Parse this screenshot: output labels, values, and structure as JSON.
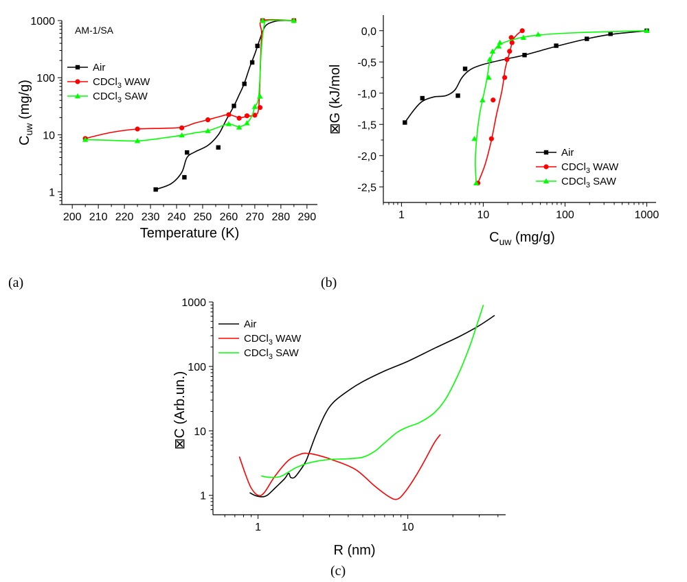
{
  "panels": [
    {
      "tag": "(a)",
      "annotation": "AM-1/SA",
      "xlabel": "Temperature (K)",
      "ylabel_main": "C",
      "ylabel_sub": "uw",
      "ylabel_tail": " (mg/g)"
    },
    {
      "tag": "(b)",
      "xlabel_main": "C",
      "xlabel_sub": "uw",
      "xlabel_tail": " (mg/g)",
      "ylabel": "⊠G (kJ/mol"
    },
    {
      "tag": "(c)",
      "xlabel": "R (nm)",
      "ylabel": "⊠C (Arb.un.)"
    }
  ],
  "legend": [
    {
      "pre": "Air",
      "sub": "",
      "post": ""
    },
    {
      "pre": "CDCl",
      "sub": "3",
      "post": " WAW"
    },
    {
      "pre": "CDCl",
      "sub": "3",
      "post": " SAW"
    }
  ],
  "chart_data": [
    {
      "type": "line",
      "panel": "(a)",
      "xlim": [
        196,
        294
      ],
      "ylim": [
        0.6,
        1000
      ],
      "yscale": "log",
      "xticks": [
        200,
        210,
        220,
        230,
        240,
        250,
        260,
        270,
        280,
        290
      ],
      "xtick_labels": [
        "200",
        "210",
        "220",
        "230",
        "240",
        "250",
        "260",
        "270",
        "280",
        "290"
      ],
      "yticks": [
        1,
        10,
        100,
        1000
      ],
      "ytick_labels": [
        "1",
        "10",
        "100",
        "1000"
      ],
      "legend_position": "upper-left",
      "series": [
        {
          "name": "Air",
          "color": "#000000",
          "marker": "square",
          "points": [
            [
              232,
              1.1
            ],
            [
              243,
              1.8
            ],
            [
              244,
              4.9
            ],
            [
              256,
              6.0
            ],
            [
              262,
              32
            ],
            [
              266,
              78
            ],
            [
              269,
              185
            ],
            [
              271,
              360
            ],
            [
              273,
              1000
            ],
            [
              285,
              1000
            ]
          ],
          "curve": [
            [
              232,
              1.1
            ],
            [
              238,
              1.4
            ],
            [
              242,
              2.2
            ],
            [
              244,
              4.0
            ],
            [
              247,
              5.0
            ],
            [
              252,
              6.5
            ],
            [
              256,
              10
            ],
            [
              259,
              18
            ],
            [
              262,
              32
            ],
            [
              264,
              50
            ],
            [
              266,
              80
            ],
            [
              268,
              150
            ],
            [
              270,
              260
            ],
            [
              272,
              480
            ],
            [
              274,
              800
            ],
            [
              277,
              950
            ],
            [
              280,
              1000
            ],
            [
              285,
              1000
            ]
          ]
        },
        {
          "name": "CDCl3 WAW",
          "color": "#ff0000",
          "marker": "circle",
          "points": [
            [
              205,
              8.6
            ],
            [
              225,
              12.6
            ],
            [
              242,
              13.2
            ],
            [
              252,
              18.3
            ],
            [
              260,
              22.5
            ],
            [
              264,
              19.5
            ],
            [
              267,
              21.5
            ],
            [
              270,
              22.0
            ],
            [
              272,
              30
            ],
            [
              273,
              1000
            ],
            [
              285,
              1000
            ]
          ],
          "curve": [
            [
              205,
              8.6
            ],
            [
              215,
              11.0
            ],
            [
              225,
              12.6
            ],
            [
              235,
              13.0
            ],
            [
              242,
              13.5
            ],
            [
              247,
              16.0
            ],
            [
              252,
              18.3
            ],
            [
              256,
              20.5
            ],
            [
              260,
              22.5
            ],
            [
              264,
              20.0
            ],
            [
              267,
              21.0
            ],
            [
              270,
              22.5
            ],
            [
              271.5,
              30
            ],
            [
              272.2,
              200
            ],
            [
              272.6,
              600
            ],
            [
              273,
              1000
            ],
            [
              285,
              1000
            ]
          ]
        },
        {
          "name": "CDCl3 SAW",
          "color": "#00ff00",
          "marker": "triangle",
          "points": [
            [
              205,
              8.2
            ],
            [
              225,
              7.8
            ],
            [
              242,
              9.8
            ],
            [
              252,
              11.7
            ],
            [
              260,
              15.5
            ],
            [
              264,
              13.5
            ],
            [
              267,
              16.0
            ],
            [
              270,
              31
            ],
            [
              272,
              47
            ],
            [
              273,
              1000
            ],
            [
              285,
              1000
            ]
          ],
          "curve": [
            [
              205,
              8.2
            ],
            [
              215,
              8.0
            ],
            [
              225,
              7.8
            ],
            [
              235,
              8.8
            ],
            [
              242,
              9.8
            ],
            [
              247,
              10.8
            ],
            [
              252,
              11.7
            ],
            [
              256,
              13.5
            ],
            [
              260,
              15.5
            ],
            [
              264,
              13.8
            ],
            [
              267,
              16.0
            ],
            [
              269,
              22
            ],
            [
              270,
              31
            ],
            [
              271.5,
              47
            ],
            [
              272.5,
              300
            ],
            [
              273.5,
              800
            ],
            [
              275,
              1000
            ],
            [
              285,
              1000
            ]
          ]
        }
      ]
    },
    {
      "type": "line",
      "panel": "(b)",
      "xlim": [
        0.6,
        1300
      ],
      "ylim": [
        -2.75,
        0.25
      ],
      "xscale": "log",
      "xticks": [
        1,
        10,
        100,
        1000
      ],
      "xtick_labels": [
        "1",
        "10",
        "100",
        "1000"
      ],
      "yticks": [
        -2.5,
        -2.0,
        -1.5,
        -1.0,
        -0.5,
        0.0
      ],
      "ytick_labels": [
        "-2,5",
        "-2,0",
        "-1,5",
        "-1,0",
        "-0,5",
        "0,0"
      ],
      "legend_position": "lower-right",
      "series": [
        {
          "name": "Air",
          "color": "#000000",
          "marker": "square",
          "points": [
            [
              1.1,
              -1.47
            ],
            [
              1.8,
              -1.08
            ],
            [
              4.9,
              -1.04
            ],
            [
              6.0,
              -0.61
            ],
            [
              32,
              -0.39
            ],
            [
              78,
              -0.24
            ],
            [
              185,
              -0.13
            ],
            [
              360,
              -0.05
            ],
            [
              1000,
              0.0
            ]
          ],
          "curve": [
            [
              1.1,
              -1.47
            ],
            [
              1.4,
              -1.28
            ],
            [
              1.8,
              -1.13
            ],
            [
              2.5,
              -1.06
            ],
            [
              3.5,
              -1.04
            ],
            [
              4.5,
              -0.95
            ],
            [
              5.5,
              -0.75
            ],
            [
              7,
              -0.62
            ],
            [
              10,
              -0.54
            ],
            [
              18,
              -0.46
            ],
            [
              32,
              -0.39
            ],
            [
              78,
              -0.25
            ],
            [
              185,
              -0.13
            ],
            [
              360,
              -0.06
            ],
            [
              1000,
              0.0
            ]
          ]
        },
        {
          "name": "CDCl3 WAW",
          "color": "#ff0000",
          "marker": "circle",
          "points": [
            [
              8.6,
              -2.44
            ],
            [
              12.6,
              -1.73
            ],
            [
              13.2,
              -1.11
            ],
            [
              18.3,
              -0.75
            ],
            [
              19.5,
              -0.46
            ],
            [
              21.0,
              -0.33
            ],
            [
              22.5,
              -0.19
            ],
            [
              22.0,
              -0.11
            ],
            [
              30,
              0.0
            ]
          ],
          "curve": [
            [
              8.6,
              -2.44
            ],
            [
              10.5,
              -2.15
            ],
            [
              12.6,
              -1.75
            ],
            [
              14.5,
              -1.35
            ],
            [
              17.0,
              -0.95
            ],
            [
              18.5,
              -0.62
            ],
            [
              20.0,
              -0.45
            ],
            [
              21.5,
              -0.3
            ],
            [
              23.0,
              -0.15
            ],
            [
              26,
              -0.06
            ],
            [
              30,
              0.0
            ]
          ]
        },
        {
          "name": "CDCl3 SAW",
          "color": "#00ff00",
          "marker": "triangle",
          "points": [
            [
              8.2,
              -2.44
            ],
            [
              7.8,
              -1.73
            ],
            [
              9.8,
              -1.11
            ],
            [
              11.7,
              -0.75
            ],
            [
              12.0,
              -0.46
            ],
            [
              13.0,
              -0.33
            ],
            [
              15.5,
              -0.25
            ],
            [
              16.0,
              -0.19
            ],
            [
              31,
              -0.11
            ],
            [
              47,
              -0.06
            ],
            [
              1000,
              0.0
            ]
          ],
          "curve": [
            [
              8.2,
              -2.44
            ],
            [
              8.0,
              -2.1
            ],
            [
              8.3,
              -1.73
            ],
            [
              9.0,
              -1.35
            ],
            [
              9.8,
              -1.11
            ],
            [
              11.0,
              -0.8
            ],
            [
              12.0,
              -0.5
            ],
            [
              13.5,
              -0.33
            ],
            [
              16.0,
              -0.22
            ],
            [
              25,
              -0.13
            ],
            [
              47,
              -0.07
            ],
            [
              150,
              -0.03
            ],
            [
              1000,
              0.0
            ]
          ]
        }
      ]
    },
    {
      "type": "line",
      "panel": "(c)",
      "xlim": [
        0.5,
        45
      ],
      "ylim": [
        0.5,
        1000
      ],
      "xscale": "log",
      "yscale": "log",
      "xticks": [
        1,
        10
      ],
      "xtick_labels": [
        "1",
        "10"
      ],
      "yticks": [
        1,
        10,
        100,
        1000
      ],
      "ytick_labels": [
        "1",
        "10",
        "100",
        "1000"
      ],
      "legend_position": "upper-left",
      "series": [
        {
          "name": "Air",
          "color": "#000000",
          "curve": [
            [
              0.88,
              1.1
            ],
            [
              0.95,
              1.0
            ],
            [
              1.05,
              0.95
            ],
            [
              1.15,
              1.0
            ],
            [
              1.3,
              1.3
            ],
            [
              1.5,
              1.8
            ],
            [
              1.6,
              2.2
            ],
            [
              1.65,
              1.9
            ],
            [
              1.75,
              1.9
            ],
            [
              1.9,
              2.4
            ],
            [
              2.1,
              3.5
            ],
            [
              2.4,
              8
            ],
            [
              2.8,
              18
            ],
            [
              3.2,
              28
            ],
            [
              4,
              42
            ],
            [
              5,
              58
            ],
            [
              7,
              85
            ],
            [
              10,
              120
            ],
            [
              15,
              190
            ],
            [
              22,
              290
            ],
            [
              30,
              430
            ],
            [
              38,
              620
            ]
          ]
        },
        {
          "name": "CDCl3 WAW",
          "color": "#ff0000",
          "curve": [
            [
              0.75,
              4.0
            ],
            [
              0.82,
              2.2
            ],
            [
              0.9,
              1.3
            ],
            [
              1.0,
              1.0
            ],
            [
              1.1,
              1.1
            ],
            [
              1.3,
              2.0
            ],
            [
              1.6,
              3.5
            ],
            [
              1.9,
              4.3
            ],
            [
              2.1,
              4.5
            ],
            [
              2.5,
              4.2
            ],
            [
              3.2,
              3.5
            ],
            [
              4.5,
              2.5
            ],
            [
              6,
              1.4
            ],
            [
              7.5,
              0.95
            ],
            [
              8.5,
              0.87
            ],
            [
              9.5,
              1.1
            ],
            [
              11,
              1.8
            ],
            [
              13,
              3.5
            ],
            [
              15,
              6.5
            ],
            [
              16.5,
              8.8
            ]
          ]
        },
        {
          "name": "CDCl3 SAW",
          "color": "#00ff00",
          "curve": [
            [
              1.05,
              2.0
            ],
            [
              1.2,
              1.9
            ],
            [
              1.4,
              1.95
            ],
            [
              1.6,
              2.3
            ],
            [
              1.8,
              2.7
            ],
            [
              2.1,
              3.1
            ],
            [
              2.5,
              3.4
            ],
            [
              3,
              3.6
            ],
            [
              4,
              3.7
            ],
            [
              5,
              3.9
            ],
            [
              6,
              4.8
            ],
            [
              7,
              6.5
            ],
            [
              8.5,
              9.5
            ],
            [
              10,
              11.5
            ],
            [
              12,
              13.5
            ],
            [
              15,
              19
            ],
            [
              18,
              32
            ],
            [
              22,
              80
            ],
            [
              26,
              210
            ],
            [
              29,
              450
            ],
            [
              32,
              900
            ]
          ]
        }
      ]
    }
  ]
}
